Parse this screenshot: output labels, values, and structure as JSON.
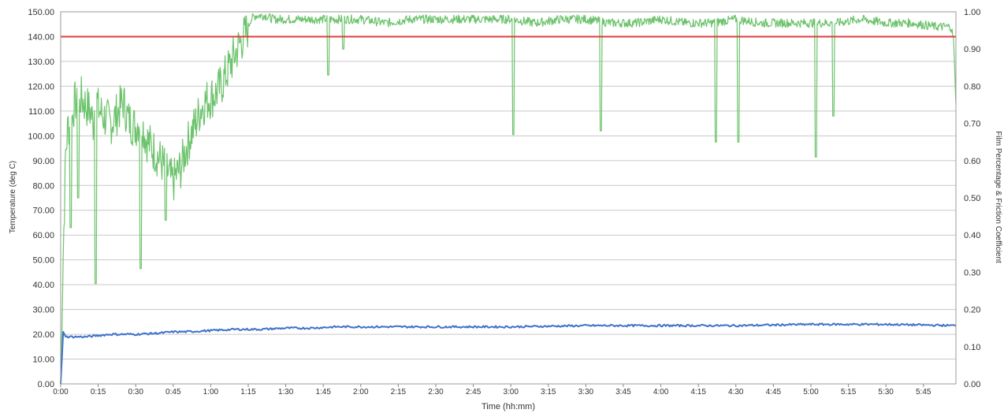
{
  "chart_data": {
    "type": "line",
    "xlabel": "Time (hh:mm)",
    "ylabel_left": "Temperature (deg C)",
    "ylabel_right": "Film Percentage & Friction Coefficient",
    "x_range_minutes": [
      0,
      358
    ],
    "x_ticks": [
      "0:00",
      "0:15",
      "0:30",
      "0:45",
      "1:00",
      "1:15",
      "1:30",
      "1:45",
      "2:00",
      "2:15",
      "2:30",
      "2:45",
      "3:00",
      "3:15",
      "3:30",
      "3:45",
      "4:00",
      "4:15",
      "4:30",
      "4:45",
      "5:00",
      "5:15",
      "5:30",
      "5:45"
    ],
    "y_left_range": [
      0,
      150
    ],
    "y_left_ticks": [
      "0.00",
      "10.00",
      "20.00",
      "30.00",
      "40.00",
      "50.00",
      "60.00",
      "70.00",
      "80.00",
      "90.00",
      "100.00",
      "110.00",
      "120.00",
      "130.00",
      "140.00",
      "150.00"
    ],
    "y_right_range": [
      0,
      1
    ],
    "y_right_ticks": [
      "0.00",
      "0.10",
      "0.20",
      "0.30",
      "0.40",
      "0.50",
      "0.60",
      "0.70",
      "0.80",
      "0.90",
      "1.00"
    ],
    "grid": true,
    "legend": "none",
    "series": [
      {
        "color": "#6cc36c",
        "axis": "right",
        "x": [
          0,
          1,
          2,
          3,
          4,
          5,
          6,
          7,
          8,
          10,
          12,
          13,
          14,
          15,
          17,
          20,
          22,
          25,
          27,
          30,
          32,
          34,
          36,
          38,
          40,
          42,
          44,
          45,
          46,
          48,
          50,
          52,
          54,
          56,
          58,
          60,
          62,
          64,
          66,
          68,
          70,
          72,
          74,
          75,
          76,
          78,
          80,
          82,
          85,
          90,
          100,
          110,
          120,
          130,
          140,
          150,
          160,
          170,
          180,
          190,
          200,
          210,
          220,
          230,
          240,
          250,
          260,
          270,
          280,
          290,
          300,
          310,
          320,
          330,
          340,
          350,
          355,
          356,
          357,
          358
        ],
        "y": [
          0.02,
          0.35,
          0.62,
          0.7,
          0.68,
          0.74,
          0.76,
          0.72,
          0.77,
          0.75,
          0.73,
          0.7,
          0.78,
          0.74,
          0.72,
          0.7,
          0.72,
          0.76,
          0.71,
          0.69,
          0.72,
          0.66,
          0.64,
          0.62,
          0.6,
          0.58,
          0.55,
          0.54,
          0.56,
          0.58,
          0.63,
          0.67,
          0.7,
          0.74,
          0.76,
          0.77,
          0.78,
          0.8,
          0.83,
          0.86,
          0.89,
          0.92,
          0.94,
          0.96,
          0.98,
          0.99,
          0.99,
          0.99,
          0.98,
          0.98,
          0.98,
          0.98,
          0.98,
          0.97,
          0.98,
          0.98,
          0.98,
          0.98,
          0.98,
          0.97,
          0.98,
          0.98,
          0.97,
          0.97,
          0.98,
          0.97,
          0.97,
          0.98,
          0.97,
          0.97,
          0.97,
          0.97,
          0.98,
          0.97,
          0.97,
          0.96,
          0.96,
          0.96,
          0.93,
          0.76
        ]
      },
      {
        "color": "#e03c3c",
        "axis": "left",
        "x": [
          0,
          358
        ],
        "y": [
          140,
          140
        ]
      },
      {
        "color": "#3f72c8",
        "axis": "left",
        "x": [
          0,
          1,
          2,
          5,
          10,
          15,
          20,
          30,
          40,
          45,
          50,
          60,
          70,
          80,
          90,
          100,
          110,
          120,
          150,
          180,
          210,
          240,
          270,
          300,
          330,
          358
        ],
        "y": [
          0,
          21,
          19,
          19,
          19,
          19.5,
          20,
          20,
          20.5,
          21,
          21,
          21.5,
          22,
          22,
          22.5,
          22.5,
          23,
          23,
          23,
          23,
          23.5,
          23.5,
          23.5,
          24,
          24,
          23.5
        ]
      }
    ],
    "green_dips": [
      {
        "x": 4,
        "y": 0.42
      },
      {
        "x": 7,
        "y": 0.5
      },
      {
        "x": 14,
        "y": 0.27
      },
      {
        "x": 32,
        "y": 0.31
      },
      {
        "x": 42,
        "y": 0.44
      },
      {
        "x": 107,
        "y": 0.83
      },
      {
        "x": 113,
        "y": 0.9
      },
      {
        "x": 181,
        "y": 0.67
      },
      {
        "x": 216,
        "y": 0.68
      },
      {
        "x": 262,
        "y": 0.65
      },
      {
        "x": 271,
        "y": 0.65
      },
      {
        "x": 302,
        "y": 0.61
      },
      {
        "x": 309,
        "y": 0.72
      }
    ]
  }
}
